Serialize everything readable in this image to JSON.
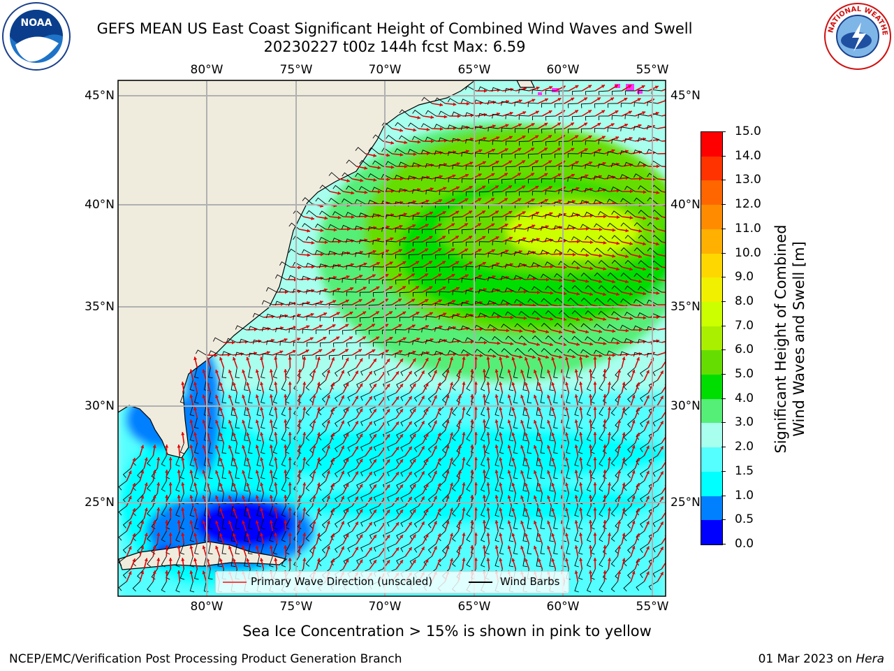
{
  "title": {
    "line1": "GEFS MEAN US East Coast Significant Height of Combined Wind Waves and Swell",
    "line2": "20230227 t00z 144h fcst   Max: 6.59"
  },
  "logos": {
    "noaa": "NOAA",
    "nws": "NATIONAL WEATHER SERVICE"
  },
  "axes": {
    "lon_labels": [
      "80°W",
      "75°W",
      "70°W",
      "65°W",
      "60°W",
      "55°W"
    ],
    "lat_labels": [
      "45°N",
      "40°N",
      "35°N",
      "30°N",
      "25°N"
    ]
  },
  "legend": {
    "wave_direction": "Primary Wave Direction (unscaled)",
    "wind_barbs": "Wind Barbs",
    "wave_color": "#ff0000",
    "barb_color": "#000000"
  },
  "colorbar": {
    "title_line1": "Significant Height of Combined",
    "title_line2": "Wind Waves and Swell [m]",
    "labels": [
      "15.0",
      "14.0",
      "13.0",
      "12.0",
      "11.0",
      "10.0",
      "9.0",
      "8.0",
      "7.0",
      "6.0",
      "5.0",
      "4.0",
      "3.0",
      "2.0",
      "1.5",
      "1.0",
      "0.5",
      "0.0"
    ],
    "colors": [
      "#ff0000",
      "#ff3300",
      "#ff6600",
      "#ff8c00",
      "#ffb000",
      "#ffd700",
      "#f0f000",
      "#ccff00",
      "#aaee00",
      "#66dd00",
      "#00dd00",
      "#55ee77",
      "#a8ffee",
      "#55ffff",
      "#00ffff",
      "#0080ff",
      "#0000ff"
    ]
  },
  "ice_note": "Sea Ice Concentration > 15% is shown in pink to yellow",
  "footer": {
    "left": "NCEP/EMC/Verification Post Processing Product Generation Branch",
    "date": "01 Mar 2023 on",
    "machine": "Hera"
  },
  "colors": {
    "land": "#efecde",
    "grid": "#b0b0b0"
  }
}
